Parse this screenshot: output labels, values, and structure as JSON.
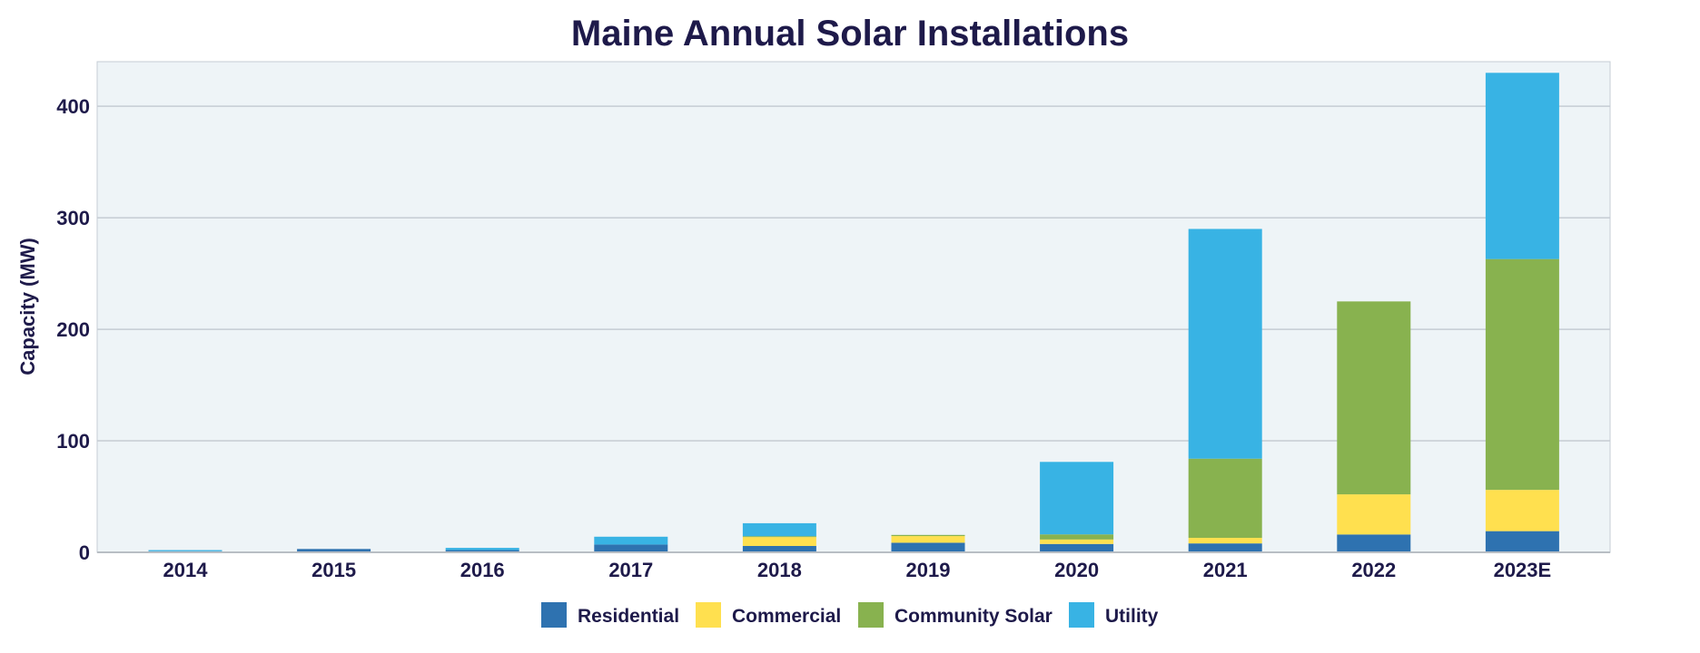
{
  "chart_data": {
    "type": "bar",
    "stacked": true,
    "title": "Maine Annual Solar Installations",
    "xlabel": "",
    "ylabel": "Capacity (MW)",
    "ylim": [
      0,
      440
    ],
    "yticks": [
      "0",
      "100",
      "200",
      "300",
      "400"
    ],
    "ytick_values": [
      0,
      100,
      200,
      300,
      400
    ],
    "grid": true,
    "legend_position": "bottom",
    "categories": [
      "2014",
      "2015",
      "2016",
      "2017",
      "2018",
      "2019",
      "2020",
      "2021",
      "2022",
      "2023E"
    ],
    "series": [
      {
        "name": "Residential",
        "color": "#2e72b0",
        "values": [
          1,
          3,
          2,
          7,
          5.7,
          8.6,
          7.5,
          8,
          16,
          19
        ]
      },
      {
        "name": "Commercial",
        "color": "#ffe04f",
        "values": [
          0,
          0,
          0,
          0,
          8,
          6,
          4,
          5,
          36,
          37
        ]
      },
      {
        "name": "Community Solar",
        "color": "#88b24f",
        "values": [
          0,
          0,
          0,
          0,
          0.8,
          1,
          4.6,
          71,
          173,
          207
        ]
      },
      {
        "name": "Utility",
        "color": "#38b3e4",
        "values": [
          1,
          0,
          2,
          7,
          11.6,
          0,
          65,
          206,
          0,
          167
        ]
      }
    ]
  }
}
